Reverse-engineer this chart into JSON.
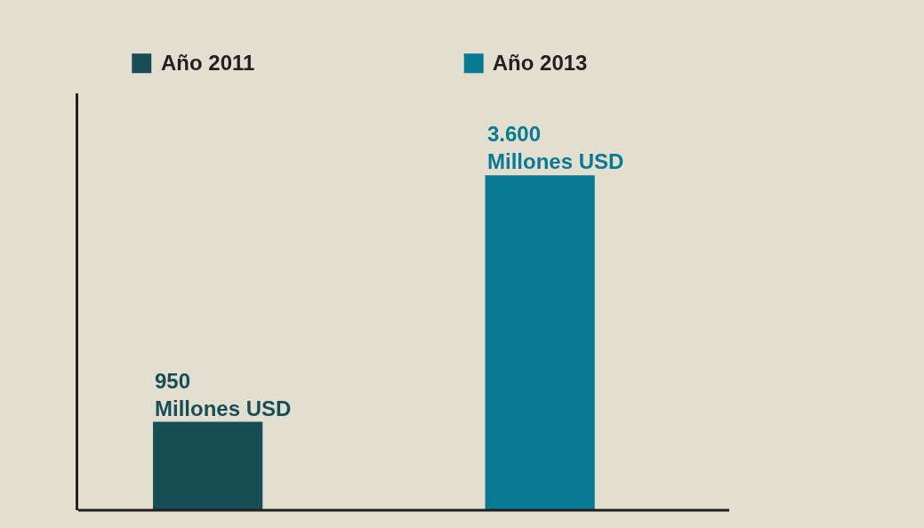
{
  "chart_data": {
    "type": "bar",
    "categories": [
      "Año 2011",
      "Año 2013"
    ],
    "series": [
      {
        "colors": [
          "#174e56",
          "#087a92"
        ],
        "values": [
          950,
          3600
        ],
        "value_labels": [
          "950 Millones USD",
          "3.600 Millones USD"
        ]
      }
    ],
    "grid": false,
    "tick_labels": "x"
  }
}
